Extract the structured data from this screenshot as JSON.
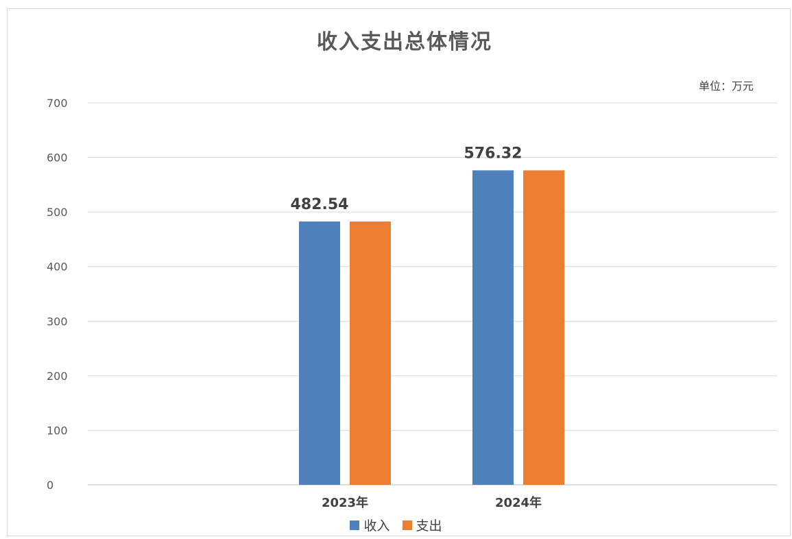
{
  "chart_data": {
    "type": "bar",
    "title": "收入支出总体情况",
    "unit_label": "单位：万元",
    "categories": [
      "2023年",
      "2024年"
    ],
    "series": [
      {
        "name": "收入",
        "color": "#4f81bd",
        "values": [
          482.54,
          576.32
        ]
      },
      {
        "name": "支出",
        "color": "#ed7d31",
        "values": [
          482.54,
          576.32
        ]
      }
    ],
    "data_labels": [
      "482.54",
      "576.32"
    ],
    "yticks": [
      "0",
      "100",
      "200",
      "300",
      "400",
      "500",
      "600",
      "700"
    ],
    "ylim": [
      0,
      700
    ],
    "grid": true,
    "legend_position": "bottom"
  }
}
